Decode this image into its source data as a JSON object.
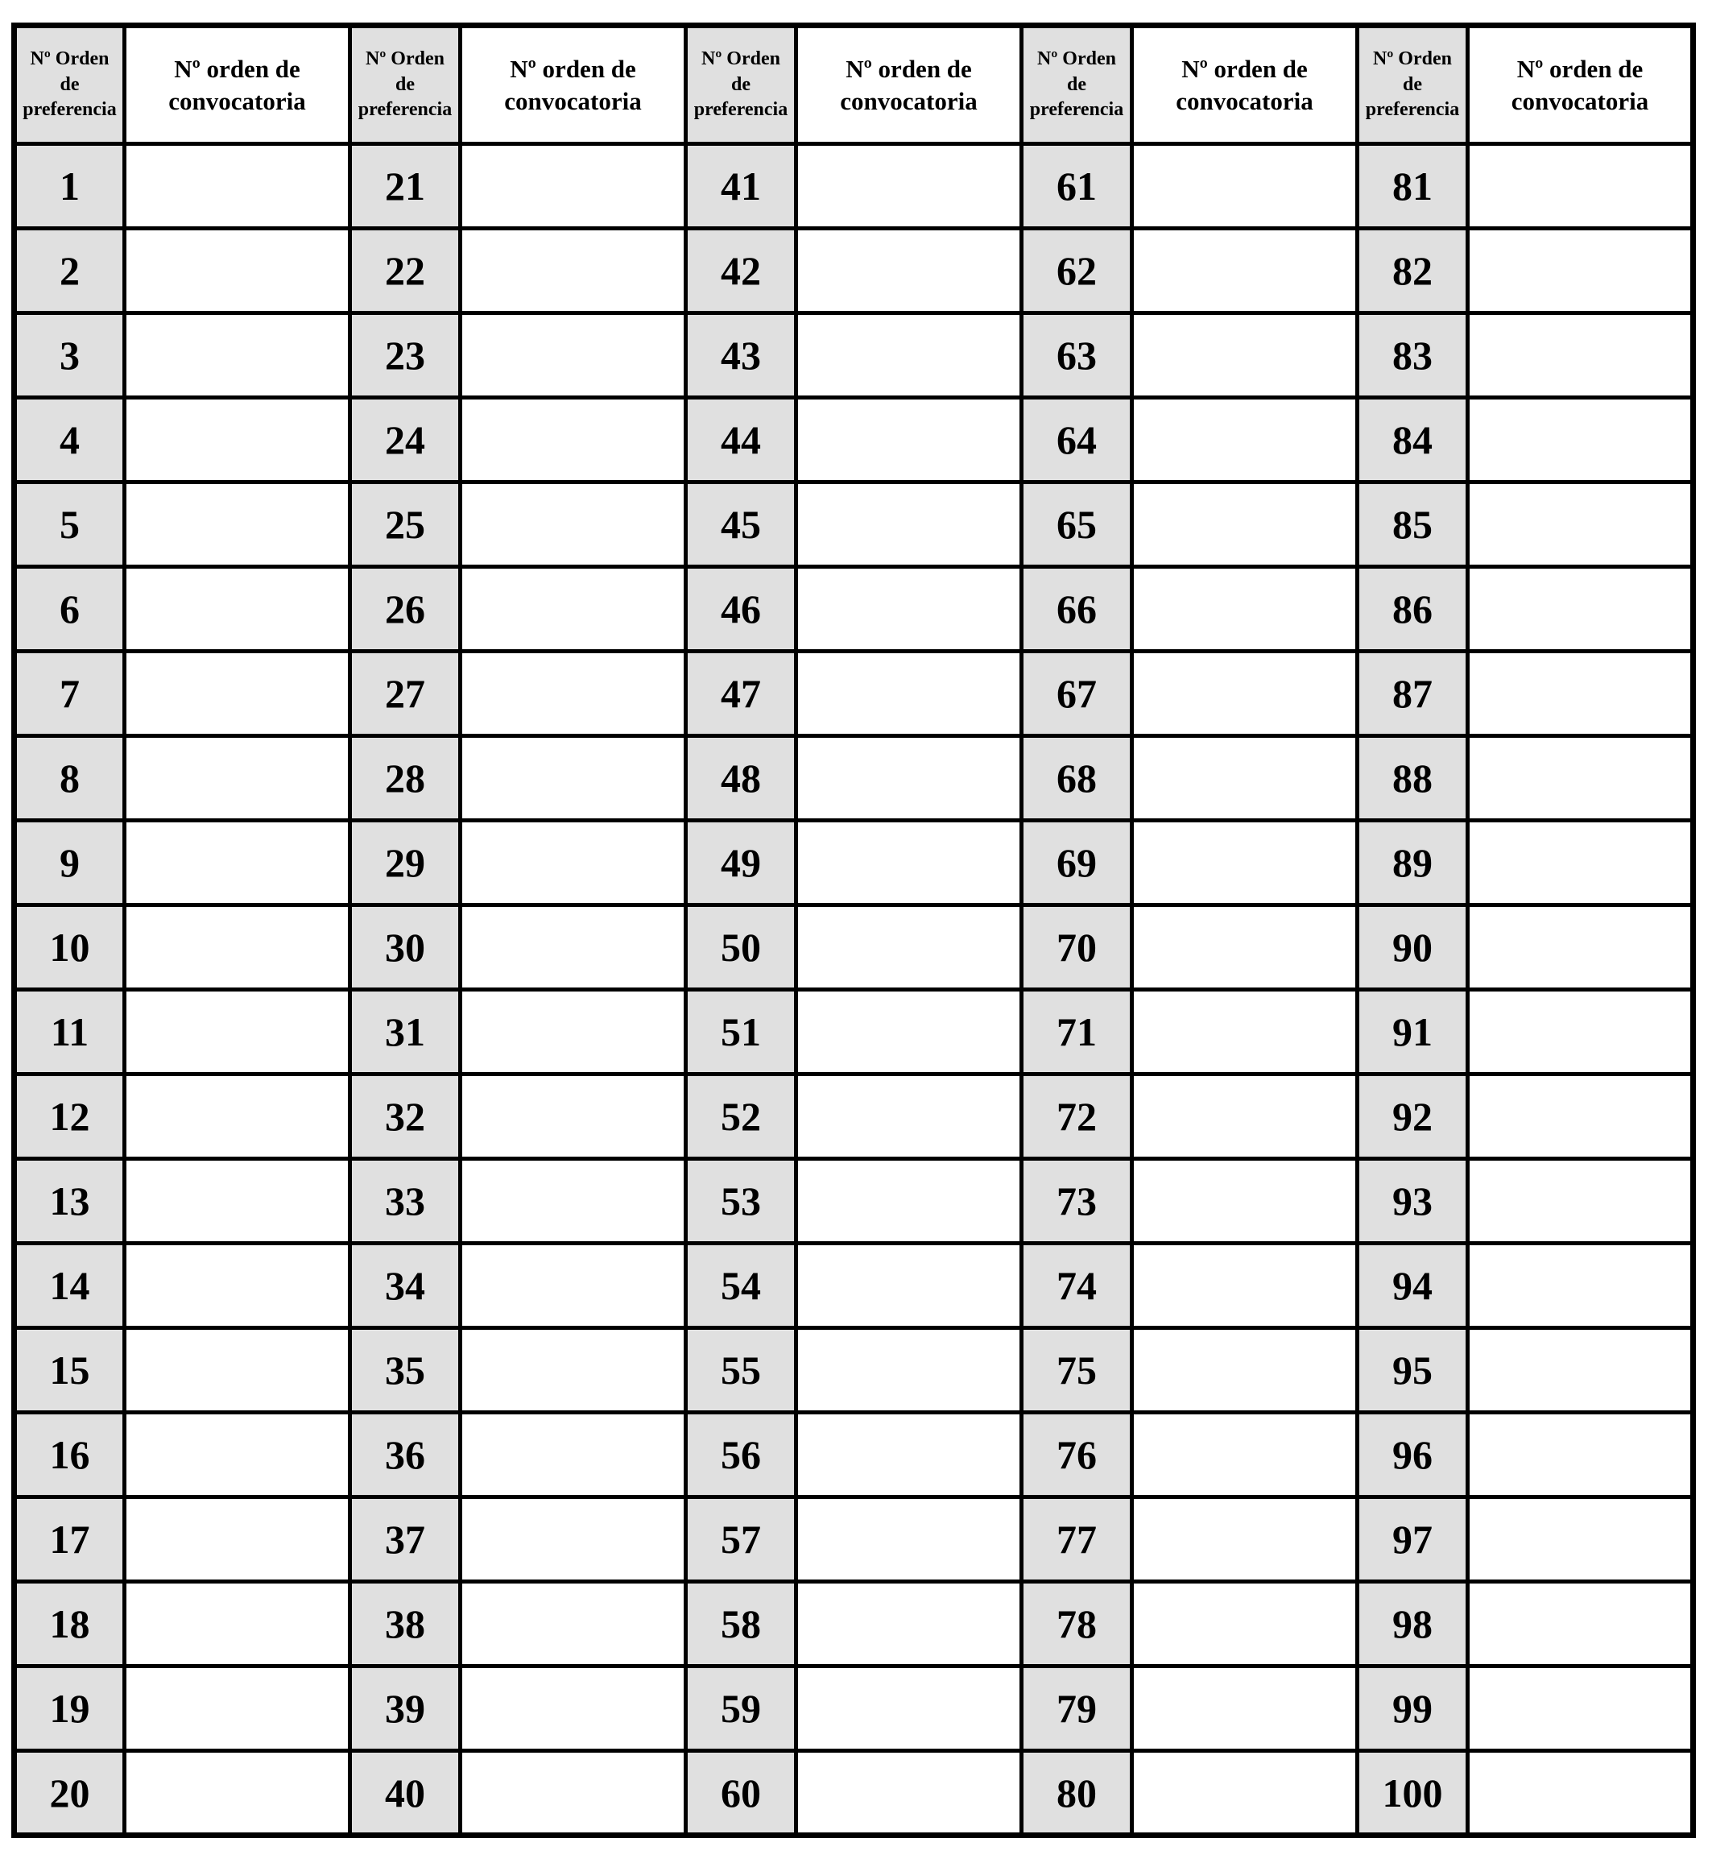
{
  "table": {
    "preference_header_label": "Nº Orden de preferencia",
    "convocatoria_header_label": "Nº orden de convocatoria",
    "rows_per_column": 20,
    "colors": {
      "preference_column_bg": "#e0e0e0",
      "border": "#000000",
      "page_bg": "#ffffff"
    },
    "groups": [
      {
        "preference_numbers": [
          1,
          2,
          3,
          4,
          5,
          6,
          7,
          8,
          9,
          10,
          11,
          12,
          13,
          14,
          15,
          16,
          17,
          18,
          19,
          20
        ],
        "convocatoria_values": [
          "",
          "",
          "",
          "",
          "",
          "",
          "",
          "",
          "",
          "",
          "",
          "",
          "",
          "",
          "",
          "",
          "",
          "",
          "",
          ""
        ]
      },
      {
        "preference_numbers": [
          21,
          22,
          23,
          24,
          25,
          26,
          27,
          28,
          29,
          30,
          31,
          32,
          33,
          34,
          35,
          36,
          37,
          38,
          39,
          40
        ],
        "convocatoria_values": [
          "",
          "",
          "",
          "",
          "",
          "",
          "",
          "",
          "",
          "",
          "",
          "",
          "",
          "",
          "",
          "",
          "",
          "",
          "",
          ""
        ]
      },
      {
        "preference_numbers": [
          41,
          42,
          43,
          44,
          45,
          46,
          47,
          48,
          49,
          50,
          51,
          52,
          53,
          54,
          55,
          56,
          57,
          58,
          59,
          60
        ],
        "convocatoria_values": [
          "",
          "",
          "",
          "",
          "",
          "",
          "",
          "",
          "",
          "",
          "",
          "",
          "",
          "",
          "",
          "",
          "",
          "",
          "",
          ""
        ]
      },
      {
        "preference_numbers": [
          61,
          62,
          63,
          64,
          65,
          66,
          67,
          68,
          69,
          70,
          71,
          72,
          73,
          74,
          75,
          76,
          77,
          78,
          79,
          80
        ],
        "convocatoria_values": [
          "",
          "",
          "",
          "",
          "",
          "",
          "",
          "",
          "",
          "",
          "",
          "",
          "",
          "",
          "",
          "",
          "",
          "",
          "",
          ""
        ]
      },
      {
        "preference_numbers": [
          81,
          82,
          83,
          84,
          85,
          86,
          87,
          88,
          89,
          90,
          91,
          92,
          93,
          94,
          95,
          96,
          97,
          98,
          99,
          100
        ],
        "convocatoria_values": [
          "",
          "",
          "",
          "",
          "",
          "",
          "",
          "",
          "",
          "",
          "",
          "",
          "",
          "",
          "",
          "",
          "",
          "",
          "",
          ""
        ]
      }
    ]
  }
}
